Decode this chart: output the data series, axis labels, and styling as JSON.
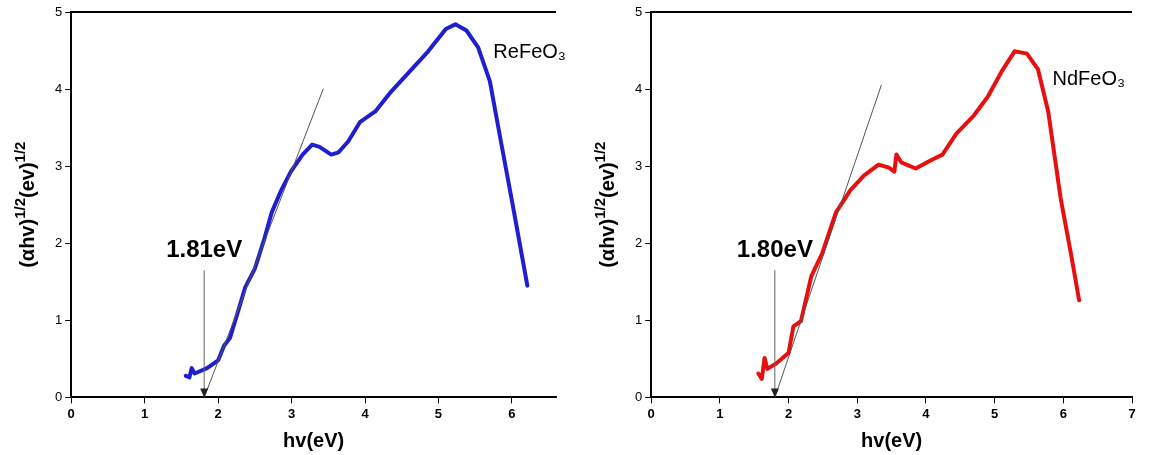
{
  "chart_data": [
    {
      "type": "line",
      "xlabel": "hv(eV)",
      "ylabel": "(αhv)$^{1/2}$(ev)$^{1/2}$",
      "xlim": [
        0,
        6.6
      ],
      "xticks": [
        0,
        1,
        2,
        3,
        4,
        5,
        6
      ],
      "ylim": [
        0,
        5
      ],
      "yticks": [
        0,
        1,
        2,
        3,
        4,
        5
      ],
      "marker": "none",
      "grid": false,
      "legend": false,
      "annotations": [
        {
          "text": "1.81eV",
          "x": 1.81,
          "y": 0
        }
      ],
      "series": [
        {
          "name": "ReFeO₃",
          "color": "#1f1fd0",
          "x": [
            1.56,
            1.61,
            1.64,
            1.68,
            1.85,
            2.0,
            2.08,
            2.16,
            2.26,
            2.37,
            2.5,
            2.63,
            2.73,
            2.86,
            2.99,
            3.15,
            3.28,
            3.38,
            3.54,
            3.64,
            3.77,
            3.93,
            4.14,
            4.34,
            4.6,
            4.86,
            5.1,
            5.23,
            5.38,
            5.54,
            5.7,
            5.85,
            6.01,
            6.21
          ],
          "values": [
            0.28,
            0.26,
            0.38,
            0.31,
            0.38,
            0.48,
            0.67,
            0.77,
            1.08,
            1.43,
            1.67,
            2.06,
            2.4,
            2.69,
            2.93,
            3.15,
            3.28,
            3.25,
            3.15,
            3.18,
            3.32,
            3.57,
            3.71,
            3.95,
            4.22,
            4.49,
            4.78,
            4.84,
            4.76,
            4.54,
            4.1,
            3.32,
            2.5,
            1.45
          ]
        },
        {
          "type": "line",
          "color": "#555555",
          "x": [
            1.81,
            3.43
          ],
          "values": [
            0,
            4.0
          ]
        }
      ]
    },
    {
      "type": "line",
      "xlabel": "hv(eV)",
      "ylabel": "(αhv)$^{1/2}$(ev)$^{1/2}$",
      "xlim": [
        0,
        7
      ],
      "xticks": [
        0,
        1,
        2,
        3,
        4,
        5,
        6,
        7
      ],
      "ylim": [
        0,
        5
      ],
      "yticks": [
        0,
        1,
        2,
        3,
        4,
        5
      ],
      "marker": "none",
      "grid": false,
      "legend": false,
      "annotations": [
        {
          "text": "1.80eV",
          "x": 1.8,
          "y": 0
        }
      ],
      "series": [
        {
          "name": "NdFeO₃",
          "color": "#e8100f",
          "x": [
            1.56,
            1.61,
            1.65,
            1.69,
            1.82,
            2.0,
            2.07,
            2.18,
            2.33,
            2.49,
            2.69,
            2.9,
            3.1,
            3.31,
            3.46,
            3.54,
            3.57,
            3.64,
            3.85,
            4.08,
            4.24,
            4.44,
            4.7,
            4.9,
            5.11,
            5.29,
            5.47,
            5.63,
            5.78,
            5.96,
            6.11,
            6.23
          ],
          "values": [
            0.31,
            0.24,
            0.51,
            0.37,
            0.44,
            0.58,
            0.92,
            0.99,
            1.57,
            1.87,
            2.4,
            2.69,
            2.88,
            3.02,
            2.98,
            2.93,
            3.15,
            3.05,
            2.97,
            3.08,
            3.15,
            3.42,
            3.66,
            3.9,
            4.24,
            4.49,
            4.46,
            4.26,
            3.71,
            2.59,
            1.87,
            1.26
          ]
        },
        {
          "type": "line",
          "color": "#555555",
          "x": [
            1.8,
            3.35
          ],
          "values": [
            0,
            4.05
          ]
        }
      ]
    }
  ]
}
